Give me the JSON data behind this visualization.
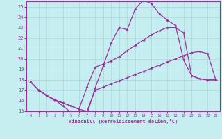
{
  "xlabel": "Windchill (Refroidissement éolien,°C)",
  "xlim": [
    -0.5,
    23.5
  ],
  "ylim": [
    15,
    25.5
  ],
  "xticks": [
    0,
    1,
    2,
    3,
    4,
    5,
    6,
    7,
    8,
    9,
    10,
    11,
    12,
    13,
    14,
    15,
    16,
    17,
    18,
    19,
    20,
    21,
    22,
    23
  ],
  "yticks": [
    15,
    16,
    17,
    18,
    19,
    20,
    21,
    22,
    23,
    24,
    25
  ],
  "bg_color": "#c6eef0",
  "line_color": "#993399",
  "grid_color": "#a8d8dc",
  "line1_x": [
    0,
    1,
    2,
    3,
    4,
    5,
    6,
    7,
    8,
    9,
    10,
    11,
    12,
    13,
    14,
    15,
    16,
    17,
    18,
    19,
    20,
    21,
    22,
    23
  ],
  "line1_y": [
    17.8,
    17.0,
    16.5,
    16.1,
    15.5,
    14.9,
    14.6,
    14.7,
    17.2,
    19.3,
    21.5,
    23.0,
    22.8,
    24.8,
    25.6,
    25.3,
    24.3,
    23.7,
    23.2,
    19.9,
    18.4,
    18.1,
    18.0,
    18.0
  ],
  "line2_x": [
    0,
    1,
    2,
    3,
    4,
    5,
    6,
    7,
    8,
    9,
    10,
    11,
    12,
    13,
    14,
    15,
    16,
    17,
    18,
    19,
    20,
    21,
    22,
    23
  ],
  "line2_y": [
    17.8,
    17.0,
    16.5,
    16.1,
    15.8,
    15.5,
    15.2,
    17.3,
    19.2,
    19.5,
    19.8,
    20.2,
    20.8,
    21.3,
    21.8,
    22.3,
    22.7,
    23.0,
    23.0,
    22.5,
    18.4,
    18.1,
    18.0,
    18.0
  ],
  "line3_x": [
    0,
    1,
    2,
    3,
    4,
    5,
    6,
    7,
    8,
    9,
    10,
    11,
    12,
    13,
    14,
    15,
    16,
    17,
    18,
    19,
    20,
    21,
    22,
    23
  ],
  "line3_y": [
    17.8,
    17.0,
    16.5,
    16.0,
    15.8,
    15.5,
    15.2,
    15.0,
    17.0,
    17.3,
    17.6,
    17.9,
    18.2,
    18.5,
    18.8,
    19.1,
    19.4,
    19.7,
    20.0,
    20.3,
    20.6,
    20.7,
    20.5,
    18.0
  ]
}
